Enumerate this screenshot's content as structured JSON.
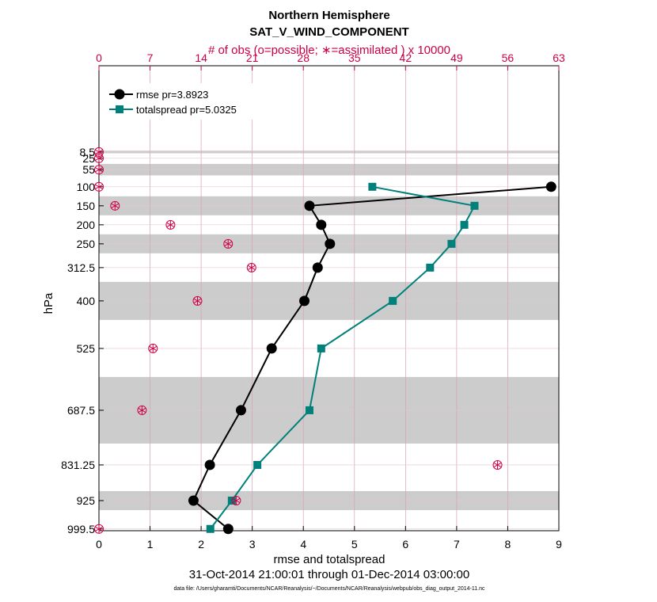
{
  "chart_data": {
    "type": "line",
    "title": "Northern Hemisphere",
    "subtitle": "SAT_V_WIND_COMPONENT",
    "top_axis_label": "# of obs (o=possible; ∗=assimilated ) x 10000",
    "xlabel": "rmse and totalspread",
    "ylabel": "hPa",
    "date_range": "31-Oct-2014 21:00:01 through 01-Dec-2014 03:00:00",
    "footnote": "data file: /Users/gharamti/Documents/NCAR/Reanalysis/~/Documents/NCAR/Reanalysis/webpub/obs_diag_output_2014-11.nc",
    "xlim": [
      0,
      9
    ],
    "xticks": [
      0,
      1,
      2,
      3,
      4,
      5,
      6,
      7,
      8,
      9
    ],
    "top_xlim": [
      0,
      63
    ],
    "top_xticks": [
      0,
      7,
      14,
      21,
      28,
      35,
      42,
      49,
      56,
      63
    ],
    "levels": [
      8.5,
      25,
      55,
      100,
      150,
      200,
      250,
      312.5,
      400,
      525,
      687.5,
      831.25,
      925,
      999.5
    ],
    "level_labels": [
      "8.5",
      "25",
      "55",
      "100",
      "150",
      "200",
      "250",
      "312.5",
      "400",
      "525",
      "687.5",
      "831.25",
      "925",
      "999.5"
    ],
    "bands": [
      [
        5,
        12
      ],
      [
        40,
        70
      ],
      [
        125,
        175
      ],
      [
        225,
        275
      ],
      [
        350,
        450
      ],
      [
        600,
        775
      ],
      [
        900,
        950
      ]
    ],
    "series": [
      {
        "name": "rmse",
        "legend": "rmse pr=3.8923",
        "color": "#000000",
        "marker": "circle",
        "points": [
          [
            8.85,
            100
          ],
          [
            4.12,
            150
          ],
          [
            4.35,
            200
          ],
          [
            4.52,
            250
          ],
          [
            4.28,
            312.5
          ],
          [
            4.02,
            400
          ],
          [
            3.38,
            525
          ],
          [
            2.78,
            687.5
          ],
          [
            2.17,
            831.25
          ],
          [
            1.85,
            925
          ],
          [
            2.53,
            999.5
          ]
        ]
      },
      {
        "name": "totalspread",
        "legend": "totalspread pr=5.0325",
        "color": "#00807a",
        "marker": "square",
        "points": [
          [
            5.35,
            100
          ],
          [
            7.35,
            150
          ],
          [
            7.15,
            200
          ],
          [
            6.9,
            250
          ],
          [
            6.48,
            312.5
          ],
          [
            5.75,
            400
          ],
          [
            4.35,
            525
          ],
          [
            4.12,
            687.5
          ],
          [
            3.1,
            831.25
          ],
          [
            2.6,
            925
          ],
          [
            2.18,
            999.5
          ]
        ]
      }
    ],
    "obs": {
      "color": "#cc0044",
      "unit": "x 10000",
      "points": [
        [
          0,
          8.5
        ],
        [
          0,
          25
        ],
        [
          0,
          55
        ],
        [
          0,
          100
        ],
        [
          2.2,
          150
        ],
        [
          9.8,
          200
        ],
        [
          17.7,
          250
        ],
        [
          20.9,
          312.5
        ],
        [
          13.5,
          400
        ],
        [
          7.4,
          525
        ],
        [
          5.9,
          687.5
        ],
        [
          54.6,
          831.25
        ],
        [
          18.8,
          925
        ],
        [
          0,
          999.5
        ]
      ]
    }
  }
}
